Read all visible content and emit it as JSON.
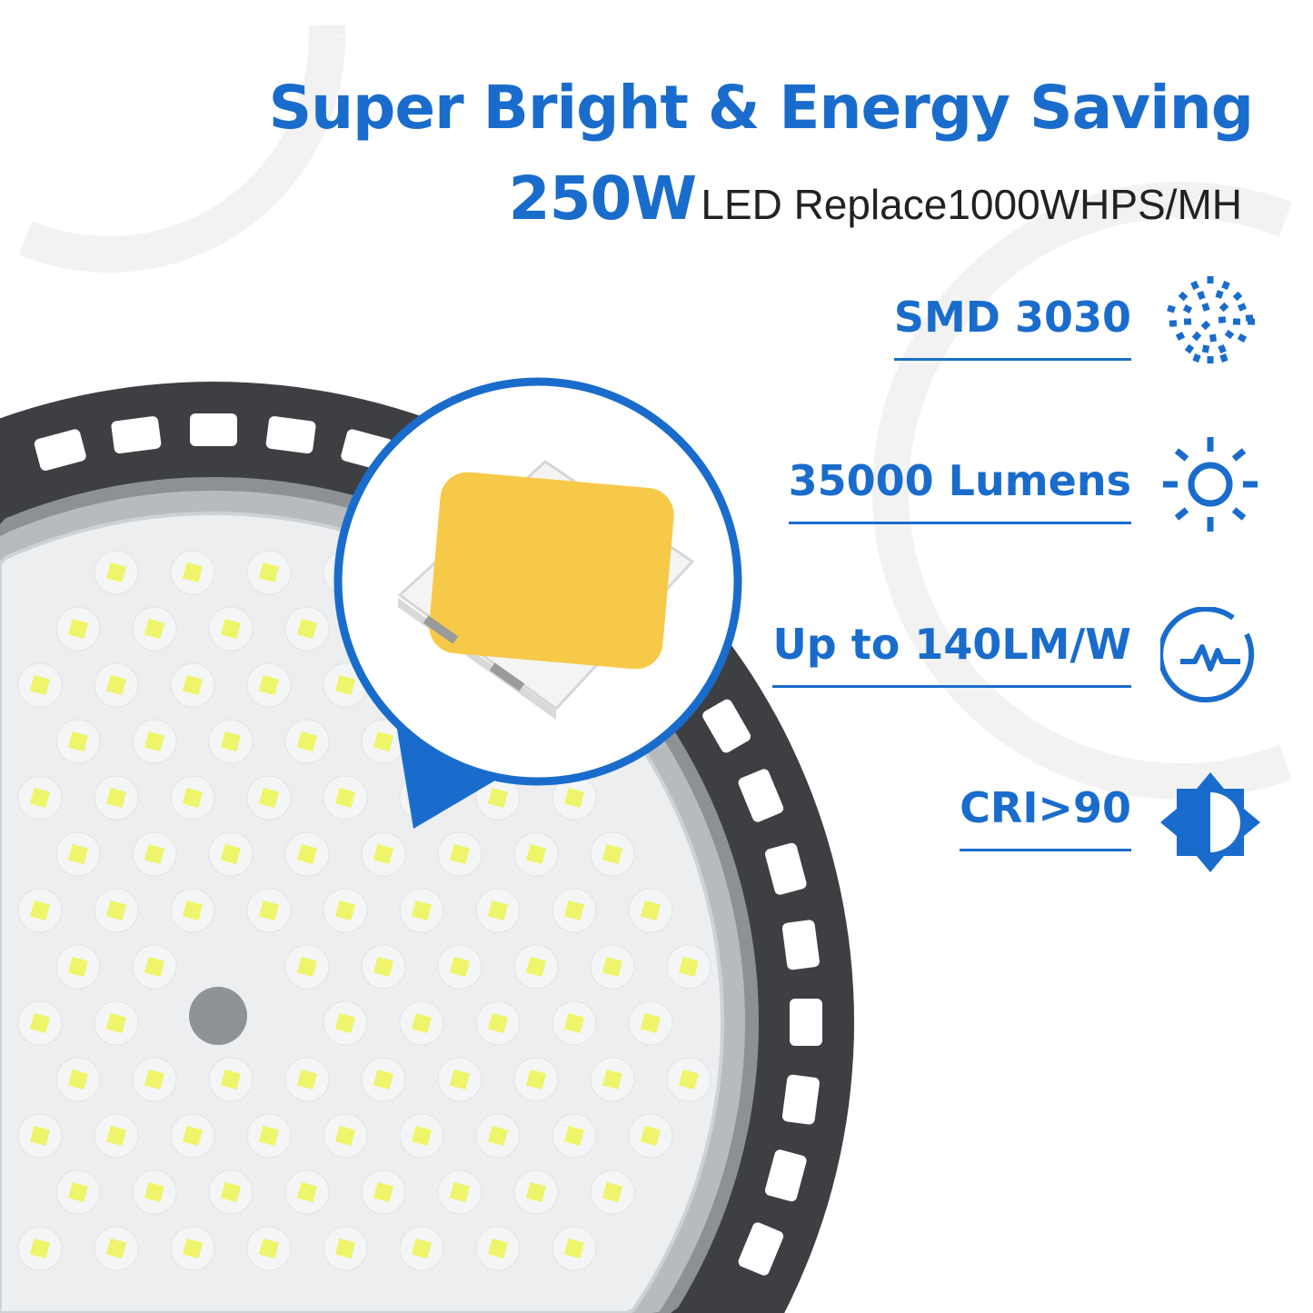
{
  "headline": "Super Bright & Energy Saving",
  "subline": {
    "wattage": "250W",
    "description": "LED Replace1000WHPS/MH"
  },
  "features": [
    {
      "label": "SMD 3030",
      "icon": "led-chip-dots-icon"
    },
    {
      "label": "35000 Lumens",
      "icon": "sun-brightness-icon"
    },
    {
      "label": "Up to 140LM/W",
      "icon": "efficiency-pulse-icon"
    },
    {
      "label": "CRI>90",
      "icon": "contrast-sun-icon"
    }
  ],
  "colors": {
    "accent": "#1a6ccc",
    "housing": "#3d3f42",
    "chip": "#f7c948"
  }
}
